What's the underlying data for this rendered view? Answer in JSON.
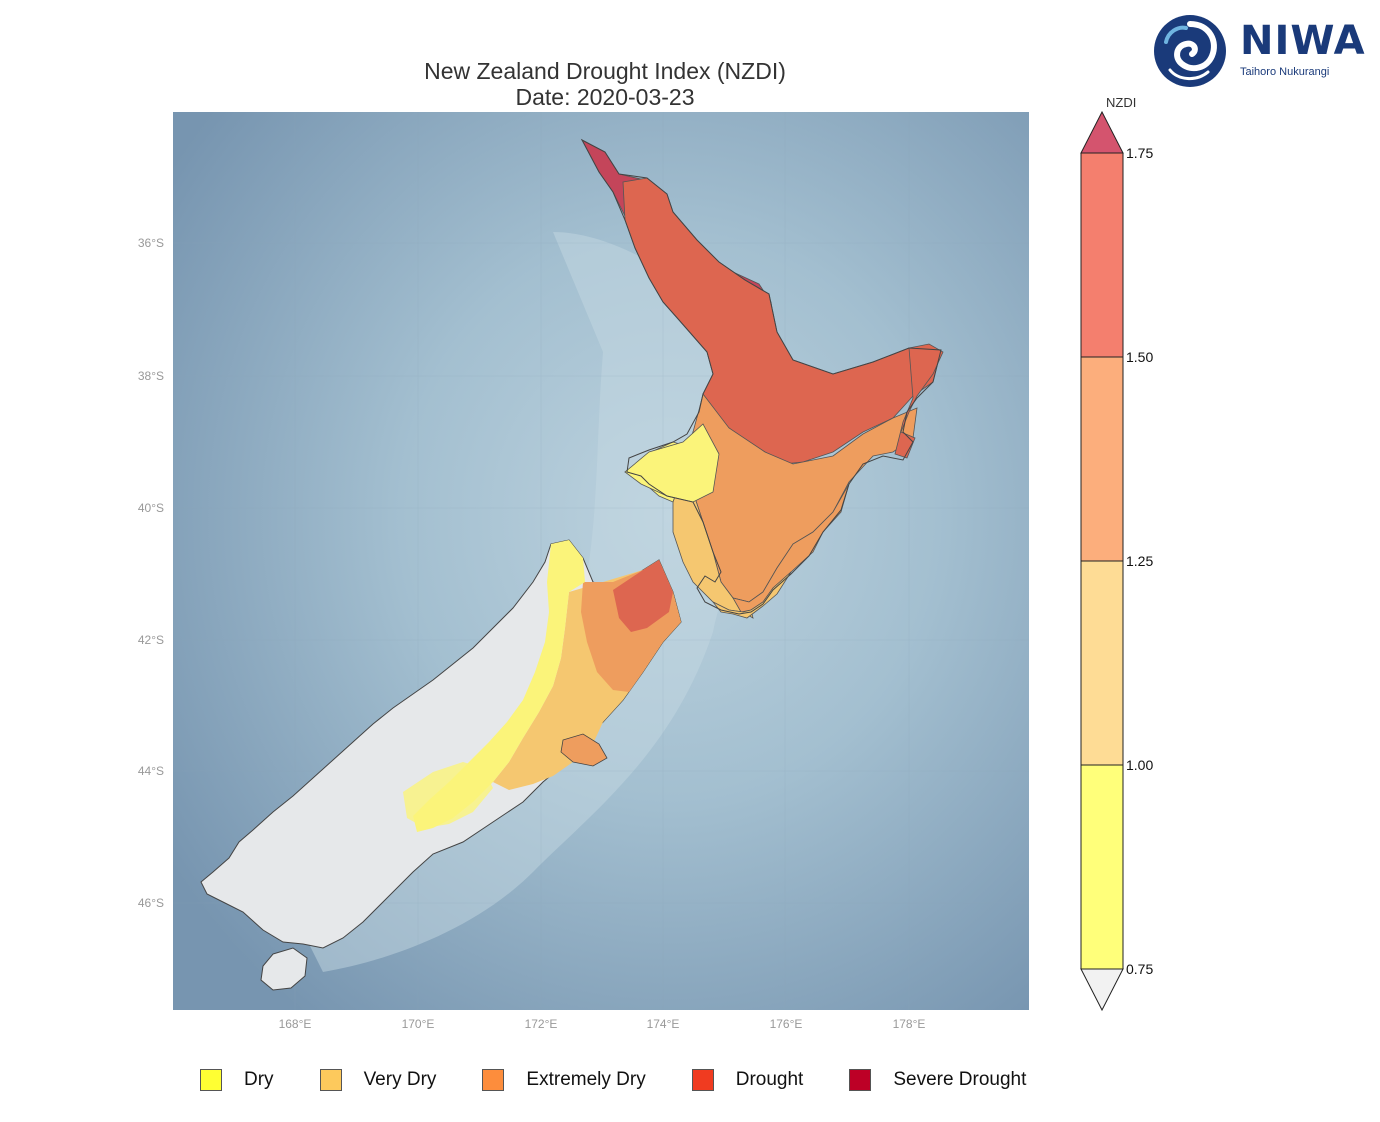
{
  "title": {
    "line1": "New Zealand Drought Index (NZDI)",
    "line2": "Date: 2020-03-23"
  },
  "logo": {
    "name": "NIWA",
    "subtitle": "Taihoro Nukurangi",
    "icon": "niwa-swirl-icon"
  },
  "map": {
    "lat_labels": [
      "36°S",
      "38°S",
      "40°S",
      "42°S",
      "44°S",
      "46°S"
    ],
    "lon_labels": [
      "168°E",
      "170°E",
      "172°E",
      "174°E",
      "176°E",
      "178°E"
    ],
    "colors": {
      "ocean_deep": "#7f9db8",
      "ocean_shallow": "#b9d0dc",
      "land_none": "#e6e8ea",
      "dry": "#fbf47a",
      "very_dry": "#f5c770",
      "extremely_dry": "#ee9d5e",
      "drought": "#dd6650",
      "severe_drought": "#c4455a"
    }
  },
  "colorbar": {
    "title": "NZDI",
    "ticks": [
      "1.75",
      "1.50",
      "1.25",
      "1.00",
      "0.75"
    ],
    "bands": [
      {
        "from": 1.75,
        "to": 2.0,
        "color": "#d4546e",
        "shape": "triangle-top"
      },
      {
        "from": 1.5,
        "to": 1.75,
        "color": "#f47f6e"
      },
      {
        "from": 1.25,
        "to": 1.5,
        "color": "#fcae7c"
      },
      {
        "from": 1.0,
        "to": 1.25,
        "color": "#fedc95"
      },
      {
        "from": 0.75,
        "to": 1.0,
        "color": "#ffff7a"
      },
      {
        "from": 0.5,
        "to": 0.75,
        "color": "#f2f2f2",
        "shape": "triangle-bottom"
      }
    ]
  },
  "legend": {
    "items": [
      {
        "label": "Dry",
        "color": "#ffff33"
      },
      {
        "label": "Very Dry",
        "color": "#fdc95c"
      },
      {
        "label": "Extremely Dry",
        "color": "#fd8d3c"
      },
      {
        "label": "Drought",
        "color": "#f03b20"
      },
      {
        "label": "Severe Drought",
        "color": "#bd0026"
      }
    ]
  }
}
